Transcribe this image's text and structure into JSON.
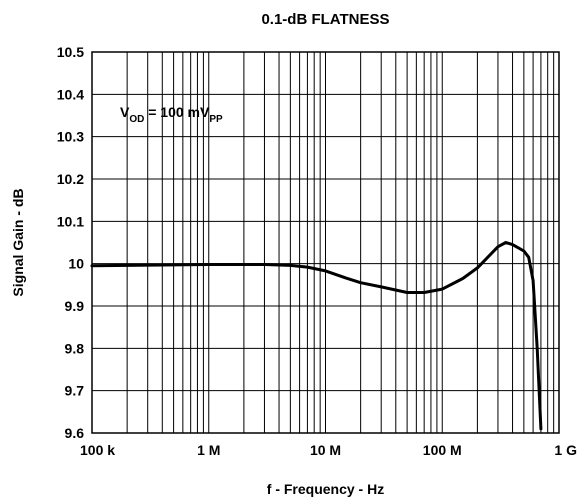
{
  "chart_data": {
    "type": "line",
    "title": "0.1-dB FLATNESS",
    "xlabel": "f - Frequency - Hz",
    "ylabel": "Signal Gain - dB",
    "x_scale": "log",
    "xlim": [
      100000,
      1000000000
    ],
    "ylim": [
      9.6,
      10.5
    ],
    "grid": true,
    "x_ticks": [
      100000,
      1000000,
      10000000,
      100000000,
      1000000000
    ],
    "x_tick_labels": [
      "100 k",
      "1 M",
      "10 M",
      "100 M",
      "1 G"
    ],
    "y_ticks": [
      9.6,
      9.7,
      9.8,
      9.9,
      10,
      10.1,
      10.2,
      10.3,
      10.4,
      10.5
    ],
    "y_tick_labels": [
      "9.6",
      "9.7",
      "9.8",
      "9.9",
      "10",
      "10.1",
      "10.2",
      "10.3",
      "10.4",
      "10.5"
    ],
    "annotation": {
      "main": "V",
      "sub1": "OD",
      "middle": " = 100 mV",
      "sub2": "PP"
    },
    "series": [
      {
        "x": [
          100000,
          200000,
          500000,
          1000000,
          2000000,
          3000000,
          5000000,
          7000000,
          10000000,
          15000000,
          20000000,
          30000000,
          50000000,
          70000000,
          100000000,
          150000000,
          200000000,
          300000000,
          350000000,
          400000000,
          500000000,
          550000000,
          600000000,
          650000000,
          700000000
        ],
        "y": [
          9.995,
          9.996,
          9.997,
          9.998,
          9.998,
          9.998,
          9.996,
          9.992,
          9.983,
          9.966,
          9.955,
          9.945,
          9.932,
          9.932,
          9.94,
          9.965,
          9.99,
          10.04,
          10.05,
          10.045,
          10.03,
          10.015,
          9.96,
          9.8,
          9.61
        ]
      }
    ]
  }
}
